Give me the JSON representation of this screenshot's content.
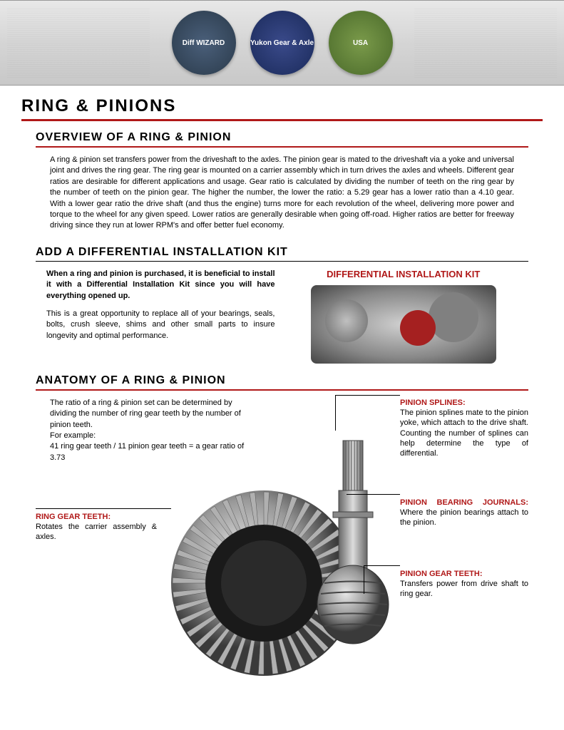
{
  "colors": {
    "accent_red": "#b01818",
    "text": "#000000",
    "header_grad_top": "#e8e8e8",
    "header_grad_bottom": "#c8c8c8"
  },
  "header": {
    "logos": [
      "Diff WIZARD",
      "Yukon Gear & Axle",
      "USA"
    ]
  },
  "main_title": "RING & PINIONS",
  "overview": {
    "title": "OVERVIEW OF A RING & PINION",
    "body": "A ring & pinion set transfers power from the driveshaft to the axles. The pinion gear is mated to the driveshaft via a yoke and universal joint and drives the ring gear. The ring gear is mounted on a carrier assembly which in turn drives the axles and wheels. Different gear ratios are desirable for different applications and usage. Gear ratio is calculated by dividing the number of teeth on the ring gear by the number of teeth on the pinion gear. The higher the number, the lower the ratio: a 5.29 gear has a lower ratio than a 4.10 gear. With a lower gear ratio the drive shaft (and thus the engine) turns more for each revolution of the wheel, delivering more power and torque to the wheel for any given speed. Lower ratios are generally desirable when going off-road. Higher ratios are better for freeway driving since they run at lower RPM's and offer better fuel economy."
  },
  "kit": {
    "title": "ADD A DIFFERENTIAL INSTALLATION KIT",
    "lead": "When a ring and pinion is purchased, it is beneficial to install it with a Differential Installation Kit since you will have everything opened up.",
    "body": "This is a great opportunity to replace all of your bearings, seals, bolts, crush sleeve, shims and other small parts to insure longevity and optimal performance.",
    "image_title": "DIFFERENTIAL INSTALLATION KIT"
  },
  "anatomy": {
    "title": "ANATOMY OF A RING & PINION",
    "intro_1": "The ratio of a ring & pinion set can be determined by dividing the number of ring gear teeth by the number of pinion teeth.",
    "intro_2": "For example:",
    "intro_3": "41 ring gear teeth / 11 pinion gear teeth = a gear ratio of 3.73",
    "callouts": {
      "ring_teeth": {
        "title": "RING GEAR TEETH:",
        "body": " Rotates the carrier assembly & axles."
      },
      "pinion_splines": {
        "title": "PINION SPLINES:",
        "body": " The pinion splines mate to the pinion yoke, which attach to the drive shaft. Counting the number of splines can help determine the type of differential."
      },
      "pinion_bearing": {
        "title": "PINION BEARING JOURNALS:",
        "body": " Where the pinion bearings attach to the pinion."
      },
      "pinion_teeth": {
        "title": "PINION GEAR TEETH:",
        "body": " Transfers power from drive shaft to ring gear."
      }
    }
  }
}
